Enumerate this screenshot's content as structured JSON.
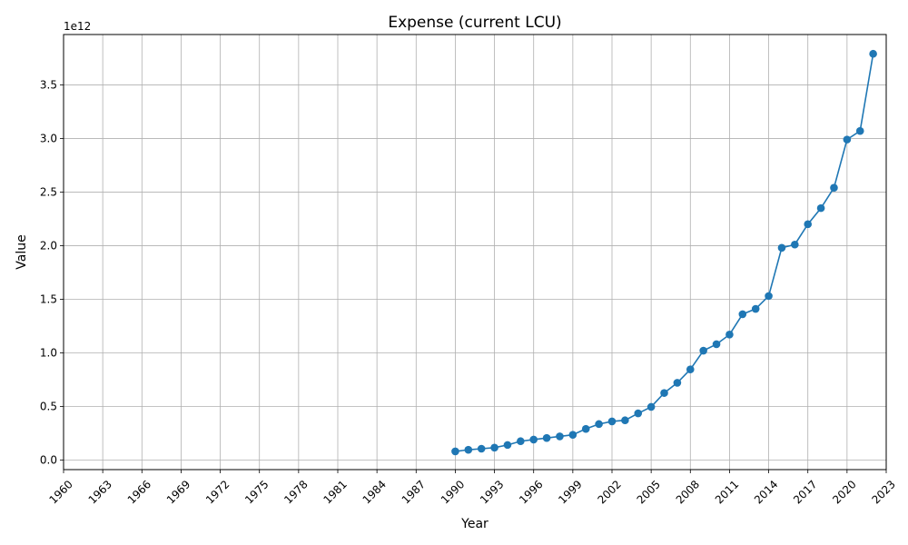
{
  "chart_data": {
    "type": "line",
    "title": "Expense (current LCU)",
    "xlabel": "Year",
    "ylabel": "Value",
    "y_offset_label": "1e12",
    "xlim": [
      1960,
      2023
    ],
    "ylim": [
      -90000000000.0,
      3970000000000.0
    ],
    "x_ticks": [
      1960,
      1963,
      1966,
      1969,
      1972,
      1975,
      1978,
      1981,
      1984,
      1987,
      1990,
      1993,
      1996,
      1999,
      2002,
      2005,
      2008,
      2011,
      2014,
      2017,
      2020,
      2023
    ],
    "y_ticks": [
      0,
      500000000000.0,
      1000000000000.0,
      1500000000000.0,
      2000000000000.0,
      2500000000000.0,
      3000000000000.0,
      3500000000000.0
    ],
    "y_tick_labels": [
      "0.0",
      "0.5",
      "1.0",
      "1.5",
      "2.0",
      "2.5",
      "3.0",
      "3.5"
    ],
    "grid": true,
    "color": "#1f77b4",
    "marker": "circle",
    "series": [
      {
        "x": [
          1990,
          1991,
          1992,
          1993,
          1994,
          1995,
          1996,
          1997,
          1998,
          1999,
          2000,
          2001,
          2002,
          2003,
          2004,
          2005,
          2006,
          2007,
          2008,
          2009,
          2010,
          2011,
          2012,
          2013,
          2014,
          2015,
          2016,
          2017,
          2018,
          2019,
          2020,
          2021,
          2022
        ],
        "y": [
          80000000000.0,
          95000000000.0,
          105000000000.0,
          115000000000.0,
          140000000000.0,
          175000000000.0,
          190000000000.0,
          205000000000.0,
          220000000000.0,
          235000000000.0,
          290000000000.0,
          335000000000.0,
          360000000000.0,
          370000000000.0,
          435000000000.0,
          495000000000.0,
          625000000000.0,
          720000000000.0,
          845000000000.0,
          1020000000000.0,
          1080000000000.0,
          1170000000000.0,
          1360000000000.0,
          1410000000000.0,
          1530000000000.0,
          1980000000000.0,
          2010000000000.0,
          2200000000000.0,
          2350000000000.0,
          2540000000000.0,
          2990000000000.0,
          3070000000000.0,
          3790000000000.0
        ]
      }
    ]
  }
}
